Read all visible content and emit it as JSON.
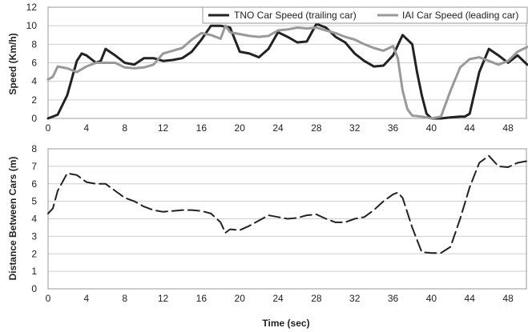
{
  "chart_data": [
    {
      "type": "line",
      "ylabel": "Speed (Km/h)",
      "xlabel": "",
      "xlim": [
        0,
        50
      ],
      "ylim": [
        0,
        12
      ],
      "x_ticks": [
        0,
        4,
        8,
        12,
        16,
        20,
        24,
        28,
        32,
        36,
        40,
        44,
        48
      ],
      "y_ticks": [
        0,
        2,
        4,
        6,
        8,
        10,
        12
      ],
      "grid": true,
      "legend": "top-right",
      "series": [
        {
          "name": "TNO Car Speed (trailing car)",
          "color": "#222222",
          "x": [
            0,
            1,
            2,
            3,
            3.5,
            4,
            5,
            5.5,
            6,
            7,
            8,
            9,
            10,
            11,
            12,
            13,
            14,
            15,
            16,
            17,
            18,
            19,
            20,
            21,
            22,
            23,
            24,
            25,
            26,
            27,
            28,
            29,
            30,
            31,
            32,
            33,
            34,
            35,
            36,
            37,
            38,
            38.5,
            39,
            39.5,
            40,
            41,
            42,
            43,
            43.5,
            44,
            45,
            46,
            47,
            48,
            49,
            50
          ],
          "y": [
            0,
            0.4,
            2.5,
            6.2,
            7,
            6.8,
            6,
            6.2,
            7.5,
            6.8,
            6,
            5.8,
            6.5,
            6.5,
            6.2,
            6.3,
            6.5,
            7.2,
            8.5,
            10,
            10,
            9.8,
            7.2,
            7,
            6.6,
            7.5,
            9.3,
            8.8,
            8.2,
            8.3,
            10.2,
            9.8,
            8.8,
            8.2,
            7,
            6.2,
            5.6,
            5.7,
            6.8,
            9,
            8,
            5,
            2.5,
            0.5,
            0,
            0,
            0.1,
            0.2,
            0.2,
            0.5,
            5,
            7.5,
            6.8,
            6,
            6.8,
            5.8
          ]
        },
        {
          "name": "IAI Car Speed (leading car)",
          "color": "#999999",
          "x": [
            0,
            0.5,
            1,
            2,
            3,
            4,
            5,
            6,
            7,
            8,
            9,
            10,
            11,
            12,
            13,
            14,
            15,
            16,
            17,
            18,
            18.5,
            19,
            20,
            21,
            22,
            23,
            24,
            25,
            26,
            27,
            28,
            29,
            30,
            31,
            32,
            33,
            34,
            35,
            36,
            36.5,
            37,
            37.5,
            38,
            39,
            40,
            41,
            42,
            43,
            44,
            45,
            46,
            47,
            48,
            49,
            50
          ],
          "y": [
            4.2,
            4.5,
            5.6,
            5.4,
            5,
            5.6,
            6,
            6,
            6,
            5.5,
            5.4,
            5.5,
            5.8,
            7,
            7.3,
            7.6,
            8.5,
            9.2,
            9,
            8.6,
            10,
            9.3,
            9.1,
            8.9,
            8.8,
            8.9,
            9.5,
            9.6,
            9.8,
            9.7,
            9.8,
            9.5,
            9.2,
            8.8,
            8.5,
            8,
            7.6,
            7.3,
            7.8,
            6.5,
            3,
            1,
            0.3,
            0.2,
            0,
            0.2,
            3,
            5.5,
            6.4,
            6.6,
            6.2,
            5.8,
            6.2,
            7.2,
            7.7
          ]
        }
      ]
    },
    {
      "type": "line",
      "ylabel": "Distance Between Cars (m)",
      "xlabel": "Time (sec)",
      "xlim": [
        0,
        50
      ],
      "ylim": [
        0,
        8
      ],
      "x_ticks": [
        0,
        4,
        8,
        12,
        16,
        20,
        24,
        28,
        32,
        36,
        40,
        44,
        48
      ],
      "y_ticks": [
        0,
        1,
        2,
        3,
        4,
        5,
        6,
        7,
        8
      ],
      "grid": true,
      "series": [
        {
          "color": "#222222",
          "dash": true,
          "x": [
            0,
            0.5,
            1,
            2,
            3,
            4,
            5,
            6,
            7,
            8,
            9,
            10,
            11,
            12,
            13,
            14,
            15,
            16,
            17,
            18,
            18.5,
            19,
            20,
            21,
            22,
            23,
            24,
            25,
            26,
            27,
            28,
            29,
            30,
            31,
            32,
            33,
            34,
            35,
            36,
            36.5,
            37,
            38,
            39,
            40,
            41,
            42,
            43,
            44,
            45,
            46,
            47,
            48,
            49,
            50
          ],
          "y": [
            4.3,
            4.6,
            5.6,
            6.6,
            6.5,
            6.1,
            6.0,
            6.0,
            5.6,
            5.2,
            5.0,
            4.7,
            4.5,
            4.4,
            4.45,
            4.5,
            4.5,
            4.45,
            4.3,
            3.8,
            3.2,
            3.4,
            3.35,
            3.6,
            3.9,
            4.2,
            4.1,
            4.0,
            4.05,
            4.2,
            4.25,
            4.0,
            3.8,
            3.8,
            4.0,
            4.1,
            4.5,
            5.0,
            5.4,
            5.5,
            5.2,
            3.5,
            2.1,
            2.05,
            2.05,
            2.4,
            4.0,
            5.8,
            7.2,
            7.6,
            7.0,
            6.95,
            7.2,
            7.3
          ]
        }
      ]
    }
  ]
}
